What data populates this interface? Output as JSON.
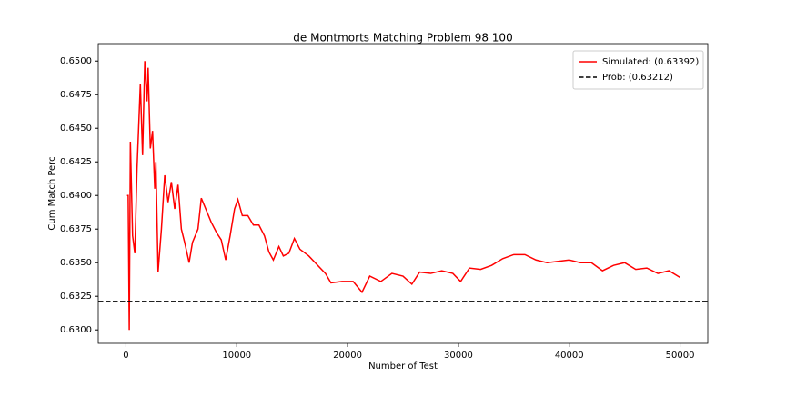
{
  "chart_data": {
    "type": "line",
    "title": "de Montmorts Matching Problem 98 100",
    "x_label": "Number of Test",
    "y_label": "Cum Match Perc",
    "x": [
      100,
      200,
      300,
      400,
      600,
      800,
      1000,
      1300,
      1500,
      1700,
      1900,
      2000,
      2200,
      2400,
      2600,
      2700,
      2900,
      3200,
      3500,
      3800,
      4100,
      4400,
      4700,
      5000,
      5300,
      5700,
      6000,
      6500,
      6800,
      7200,
      7700,
      8200,
      8600,
      9000,
      9400,
      9800,
      10100,
      10500,
      11000,
      11500,
      12000,
      12500,
      12900,
      13300,
      13800,
      14200,
      14700,
      15200,
      15700,
      16500,
      17300,
      18000,
      18500,
      19500,
      20500,
      21300,
      22000,
      23000,
      24000,
      25000,
      25800,
      26500,
      27500,
      28500,
      29500,
      30200,
      31000,
      32000,
      33000,
      34000,
      35000,
      36000,
      37000,
      38000,
      39000,
      40000,
      41000,
      42000,
      43000,
      44000,
      45000,
      46000,
      47000,
      48000,
      49000,
      50000
    ],
    "series": [
      {
        "name": "Simulated: (0.63392)",
        "color": "#ff0000",
        "values": [
          0.64,
          0.64,
          0.63,
          0.644,
          0.637,
          0.6357,
          0.642,
          0.6483,
          0.643,
          0.65,
          0.647,
          0.6495,
          0.6435,
          0.6448,
          0.6405,
          0.6425,
          0.6343,
          0.6375,
          0.6415,
          0.6395,
          0.641,
          0.639,
          0.6408,
          0.6375,
          0.6365,
          0.635,
          0.6365,
          0.6375,
          0.6398,
          0.639,
          0.638,
          0.6372,
          0.6367,
          0.6352,
          0.637,
          0.639,
          0.6397,
          0.6385,
          0.6385,
          0.6378,
          0.6378,
          0.637,
          0.6358,
          0.6352,
          0.6362,
          0.6355,
          0.6357,
          0.6368,
          0.636,
          0.6355,
          0.6348,
          0.6342,
          0.6335,
          0.6336,
          0.6336,
          0.6328,
          0.634,
          0.6336,
          0.6342,
          0.634,
          0.6334,
          0.6343,
          0.6342,
          0.6344,
          0.6342,
          0.6336,
          0.6346,
          0.6345,
          0.6348,
          0.6353,
          0.6356,
          0.6356,
          0.6352,
          0.635,
          0.6351,
          0.6352,
          0.635,
          0.635,
          0.6344,
          0.6348,
          0.635,
          0.6345,
          0.6346,
          0.6342,
          0.6344,
          0.6339
        ]
      }
    ],
    "reference_line": {
      "name": "Prob: (0.63212)",
      "value": 0.63212,
      "color": "#000000",
      "style": "dashed"
    },
    "xlim": [
      -2500,
      52500
    ],
    "ylim": [
      0.629,
      0.6513
    ],
    "xticks": [
      0,
      10000,
      20000,
      30000,
      40000,
      50000
    ],
    "yticks": [
      {
        "value": 0.63,
        "label": "0.6300"
      },
      0.6325,
      {
        "value": 0.635,
        "label": "0.6350"
      },
      0.6375,
      {
        "value": 0.64,
        "label": "0.6400"
      },
      0.6425,
      {
        "value": 0.645,
        "label": "0.6450"
      },
      0.6475,
      {
        "value": 0.65,
        "label": "0.6500"
      }
    ],
    "legend": "upper right"
  }
}
